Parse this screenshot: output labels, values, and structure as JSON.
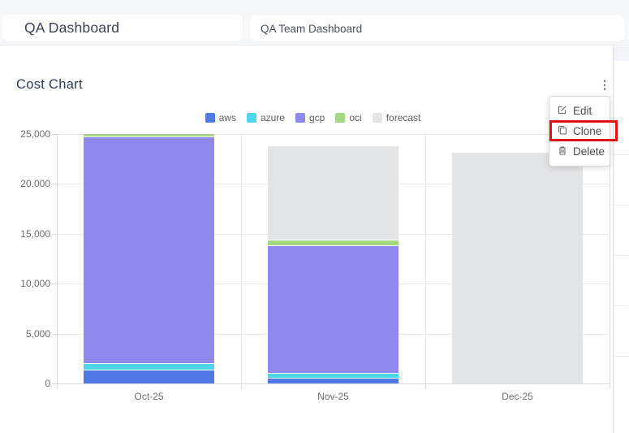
{
  "topbar": {
    "title": "QA Dashboard",
    "dashboard_name": "QA Team Dashboard"
  },
  "card": {
    "title": "Cost Chart",
    "kebab_icon": "vertical-dots"
  },
  "menu": {
    "items": [
      {
        "label": "Edit",
        "icon": "edit-icon"
      },
      {
        "label": "Clone",
        "icon": "copy-icon",
        "highlighted": true
      },
      {
        "label": "Delete",
        "icon": "trash-icon"
      }
    ]
  },
  "annotation": {
    "shape": "rectangle",
    "color": "#e01212",
    "target": "Clone menu item"
  },
  "colors": {
    "card_title": "#2e3a52",
    "topbar_bg": "#f7f8fa",
    "axis_text": "#6d6d6d",
    "grid": "#e9e9e9",
    "menu_text": "#4c4c4c",
    "highlight_red": "#e01212"
  },
  "chart_data": {
    "type": "bar",
    "stacked": true,
    "title": "Cost Chart",
    "categories": [
      "Oct-25",
      "Nov-25",
      "Dec-25"
    ],
    "series": [
      {
        "name": "aws",
        "color": "#5179e6",
        "values": [
          1300,
          500,
          0
        ]
      },
      {
        "name": "azure",
        "color": "#4fd5e8",
        "values": [
          650,
          450,
          0
        ]
      },
      {
        "name": "gcp",
        "color": "#8f88ee",
        "values": [
          22700,
          12800,
          0
        ]
      },
      {
        "name": "oci",
        "color": "#a5d880",
        "values": [
          330,
          600,
          0
        ]
      },
      {
        "name": "forecast",
        "color": "#e3e4e5",
        "values": [
          0,
          9450,
          23100
        ]
      }
    ],
    "xlabel": "",
    "ylabel": "",
    "ylim": [
      0,
      25000
    ],
    "yticks": [
      0,
      5000,
      10000,
      15000,
      20000,
      25000
    ],
    "grid": true,
    "legend_position": "top"
  }
}
